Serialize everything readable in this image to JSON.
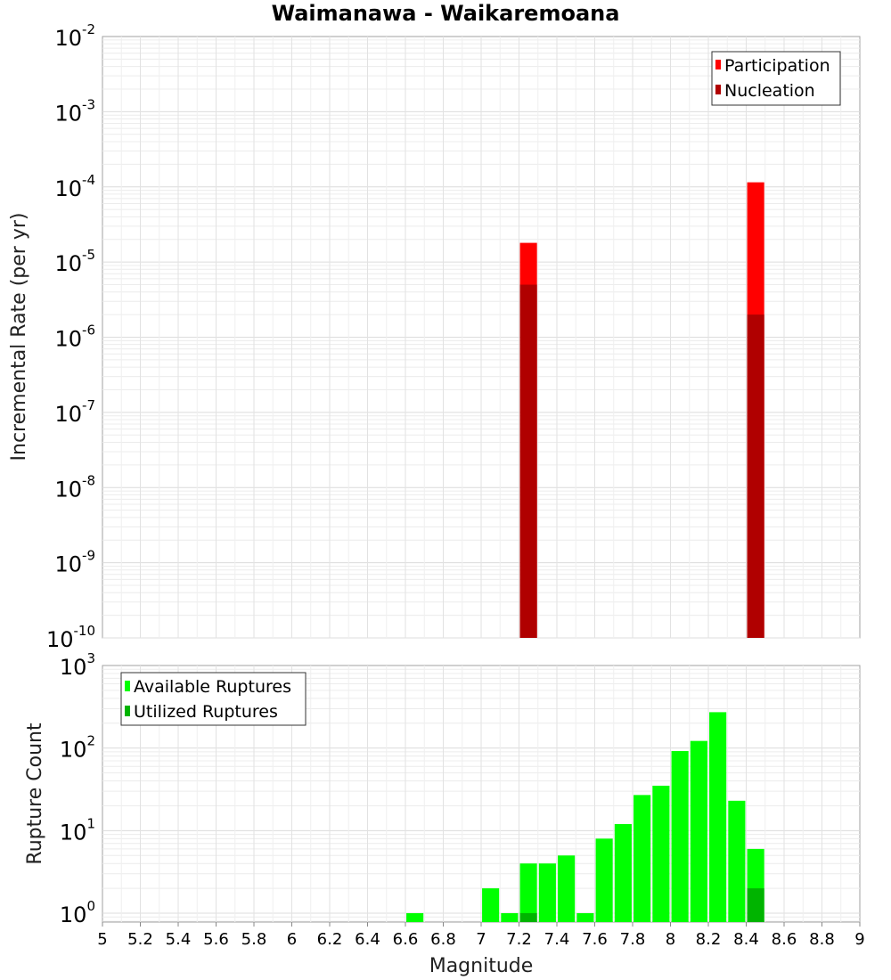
{
  "title": "Waimanawa - Waikaremoana",
  "chart_data": [
    {
      "type": "bar",
      "ylabel": "Incremental Rate (per yr)",
      "yscale": "log",
      "ylim": [
        1e-10,
        0.01
      ],
      "xlim": [
        5,
        9
      ],
      "bar_width": 0.09,
      "grid": true,
      "legend_position": "top-right",
      "y_tick_exponents": [
        "-2",
        "-3",
        "-4",
        "-5",
        "-6",
        "-7",
        "-8",
        "-9",
        "-10"
      ],
      "series": [
        {
          "name": "Participation",
          "color": "#ff0000",
          "x": [
            7.25,
            8.45
          ],
          "values": [
            1.8e-05,
            0.000115
          ]
        },
        {
          "name": "Nucleation",
          "color": "#b00000",
          "x": [
            7.25,
            8.45
          ],
          "values": [
            5e-06,
            2e-06
          ]
        }
      ]
    },
    {
      "type": "bar",
      "xlabel": "Magnitude",
      "ylabel": "Rupture Count",
      "yscale": "log",
      "ylim": [
        0.78,
        1000
      ],
      "xlim": [
        5,
        9
      ],
      "bar_width": 0.09,
      "grid": true,
      "legend_position": "top-left",
      "y_tick_exponents": [
        "3",
        "2",
        "1",
        "0"
      ],
      "x_ticks": [
        "5",
        "5.2",
        "5.4",
        "5.6",
        "5.8",
        "6",
        "6.2",
        "6.4",
        "6.6",
        "6.8",
        "7",
        "7.2",
        "7.4",
        "7.6",
        "7.8",
        "8",
        "8.2",
        "8.4",
        "8.6",
        "8.8",
        "9"
      ],
      "series": [
        {
          "name": "Available Ruptures",
          "color": "#00ff00",
          "x": [
            6.65,
            7.05,
            7.15,
            7.25,
            7.35,
            7.45,
            7.55,
            7.65,
            7.75,
            7.85,
            7.95,
            8.05,
            8.15,
            8.25,
            8.35,
            8.45
          ],
          "values": [
            1,
            2,
            1,
            4,
            4,
            5,
            1,
            8,
            12,
            27,
            35,
            92,
            122,
            272,
            23,
            6
          ]
        },
        {
          "name": "Utilized Ruptures",
          "color": "#00b400",
          "x": [
            7.25,
            8.45
          ],
          "values": [
            1,
            2
          ]
        }
      ]
    }
  ]
}
